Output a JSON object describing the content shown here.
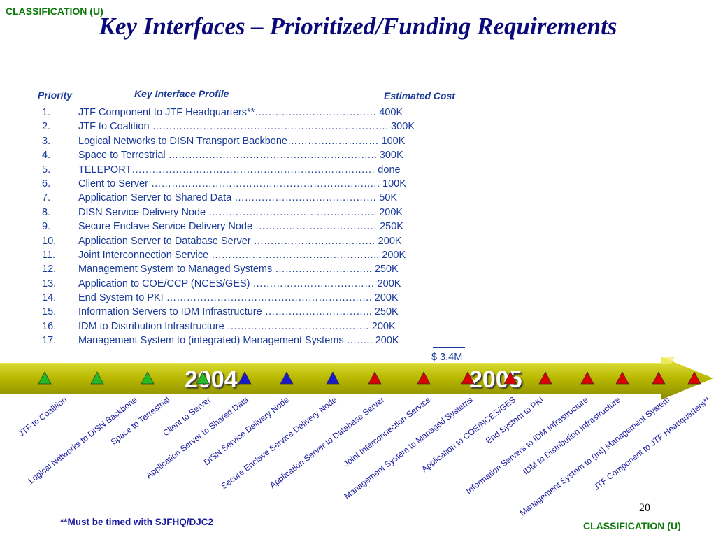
{
  "classification_top": "CLASSIFICATION (U)",
  "classification_bottom": "CLASSIFICATION (U)",
  "title": "Key Interfaces – Prioritized/Funding Requirements",
  "headers": {
    "priority": "Priority",
    "profile": "Key Interface Profile",
    "cost": "Estimated  Cost"
  },
  "items": [
    {
      "num": "1.",
      "text": "JTF Component to JTF Headquarters**……………………………… 400K"
    },
    {
      "num": "2.",
      "text": "JTF to Coalition ……………………………………………………………. 300K"
    },
    {
      "num": "3.",
      "text": "Logical Networks to DISN Transport Backbone……………………… 100K"
    },
    {
      "num": "4.",
      "text": "Space to Terrestrial ……………………………………………………..  300K"
    },
    {
      "num": "5.",
      "text": "TELEPORT………………………………………………………………   done"
    },
    {
      "num": "6.",
      "text": "Client to Server ……………………………………………………….…. 100K"
    },
    {
      "num": "7.",
      "text": "Application Server to Shared Data ……………………………………    50K"
    },
    {
      "num": "8.",
      "text": "DISN Service Delivery Node …………………………………………..  200K"
    },
    {
      "num": "9.",
      "text": "Secure Enclave Service Delivery Node ………………………………  250K"
    },
    {
      "num": "10.",
      "text": "Application Server to Database Server ………………………………   200K"
    },
    {
      "num": "11.",
      "text": "Joint Interconnection Service …………………………………………..   200K"
    },
    {
      "num": "12.",
      "text": "Management System to Managed Systems ………………………..    250K"
    },
    {
      "num": "13.",
      "text": "Application to COE/CCP (NCES/GES) ………………………………   200K"
    },
    {
      "num": "14.",
      "text": "End System to PKI …………………………………………………….    200K"
    },
    {
      "num": "15.",
      "text": "Information Servers to IDM Infrastructure …………………………..    250K"
    },
    {
      "num": "16.",
      "text": "IDM to Distribution Infrastructure ……………………………………    200K"
    },
    {
      "num": "17.",
      "text": "Management System to (integrated) Management Systems ……..   200K"
    }
  ],
  "total": "$ 3.4M",
  "timeline": {
    "year_left": "2004",
    "year_right": "2005",
    "band_color": "#b8b800",
    "markers": [
      {
        "color": "#22bb22"
      },
      {
        "color": "#22bb22"
      },
      {
        "color": "#22bb22"
      },
      {
        "color": "#22bb22"
      },
      {
        "color": "#1a1acc"
      },
      {
        "color": "#1a1acc"
      },
      {
        "color": "#1a1acc"
      },
      {
        "color": "#dd0000"
      },
      {
        "color": "#dd0000"
      },
      {
        "color": "#dd0000"
      },
      {
        "color": "#dd0000"
      },
      {
        "color": "#dd0000"
      },
      {
        "color": "#dd0000"
      },
      {
        "color": "#dd0000"
      },
      {
        "color": "#dd0000"
      },
      {
        "color": "#dd0000"
      },
      {
        "color": "#dd0000"
      }
    ],
    "labels": [
      "JTF to Coalition",
      "Logical Networks to DISN Backbone",
      "Space to Terrestrial",
      "Client to Server",
      "Application Server to Shared Data",
      "DISN Service Delivery Node",
      "Secure Enclave Service Delivery Node",
      "Application Server to Database Server",
      "Joint Interconnection Service",
      "Management System to Managed Systems",
      "Application to COE/NCES/GES",
      "End System to PKI",
      "Information Servers to IDM Infrastructure",
      "IDM to Distribution Infrastructure",
      "Management System to (Int) Management System",
      "JTF Component to JTF Headquarters**"
    ]
  },
  "footnote": "**Must be timed with SJFHQ/DJC2",
  "page_number": "20"
}
